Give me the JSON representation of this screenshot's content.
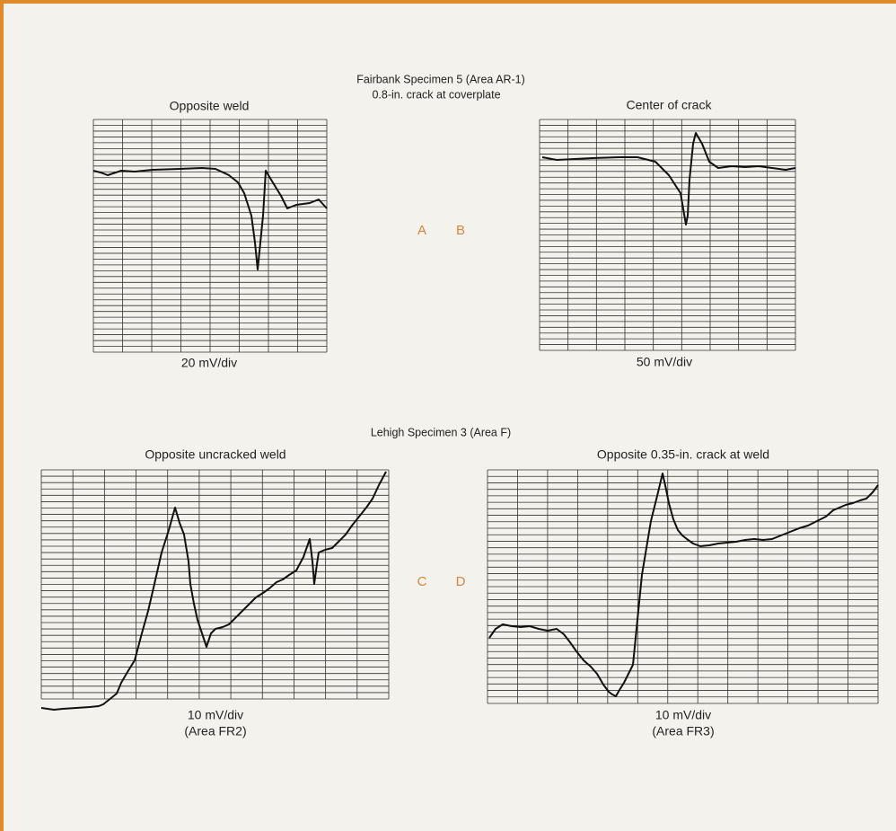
{
  "groups": [
    {
      "title": "Fairbank Specimen 5 (Area AR-1)",
      "subtitle": "0.8-in. crack at coverplate",
      "panels": [
        {
          "letter": "A",
          "caption": "Opposite weld",
          "scale": "20 mV/div"
        },
        {
          "letter": "B",
          "caption": "Center of crack",
          "scale": "50 mV/div"
        }
      ]
    },
    {
      "title": "Lehigh Specimen 3 (Area F)",
      "panels": [
        {
          "letter": "C",
          "caption": "Opposite uncracked weld",
          "scale": "10 mV/div",
          "area": "(Area FR2)"
        },
        {
          "letter": "D",
          "caption": "Opposite 0.35-in. crack at weld",
          "scale": "10 mV/div",
          "area": "(Area FR3)"
        }
      ]
    }
  ]
}
